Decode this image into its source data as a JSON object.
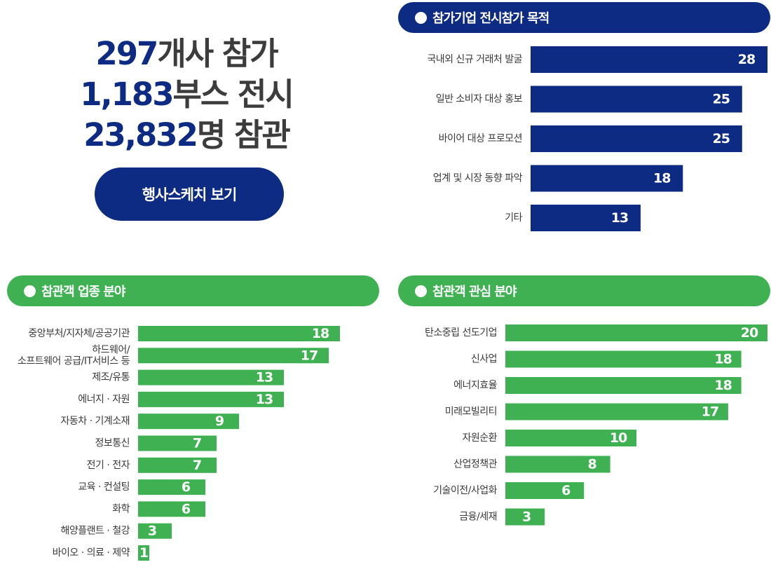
{
  "stats": {
    "line1": {
      "num": "297",
      "text": "개사 참가"
    },
    "line2": {
      "num": "1,183",
      "text": "부스 전시"
    },
    "line3": {
      "num": "23,832",
      "text": "명 참관"
    }
  },
  "cta": {
    "label": "행사스케치 보기"
  },
  "colors": {
    "navy": "#0d2b82",
    "green": "#3fb152"
  },
  "chart_data": [
    {
      "type": "bar",
      "orientation": "horizontal",
      "title": "참가기업 전시참가 목적",
      "categories": [
        "국내외 신규 거래처 발굴",
        "일반 소비자 대상 홍보",
        "바이어 대상 프로모션",
        "업계 및 시장 동향 파악",
        "기타"
      ],
      "values": [
        28,
        25,
        25,
        18,
        13
      ],
      "xlim": [
        0,
        28
      ],
      "color": "#0d2b82",
      "grid": false
    },
    {
      "type": "bar",
      "orientation": "horizontal",
      "title": "참관객 업종 분야",
      "categories": [
        "중앙부처/지자체/공공기관",
        "하드웨어/\n소프트웨어 공급/IT서비스 등",
        "제조/유통",
        "에너지 · 자원",
        "자동차 · 기계소재",
        "정보통신",
        "전기 · 전자",
        "교육 · 컨설팅",
        "화학",
        "해양플랜트 · 철강",
        "바이오 · 의료 · 제약"
      ],
      "values": [
        18,
        17,
        13,
        13,
        9,
        7,
        7,
        6,
        6,
        3,
        1
      ],
      "xlim": [
        0,
        18
      ],
      "color": "#3fb152",
      "grid": false
    },
    {
      "type": "bar",
      "orientation": "horizontal",
      "title": "참관객 관심 분야",
      "categories": [
        "탄소중립 선도기업",
        "신사업",
        "에너지효율",
        "미래모빌리티",
        "자원순환",
        "산업정책관",
        "기술이전/사업화",
        "금융/세재"
      ],
      "values": [
        20,
        18,
        18,
        17,
        10,
        8,
        6,
        3
      ],
      "xlim": [
        0,
        20
      ],
      "color": "#3fb152",
      "grid": false
    }
  ]
}
